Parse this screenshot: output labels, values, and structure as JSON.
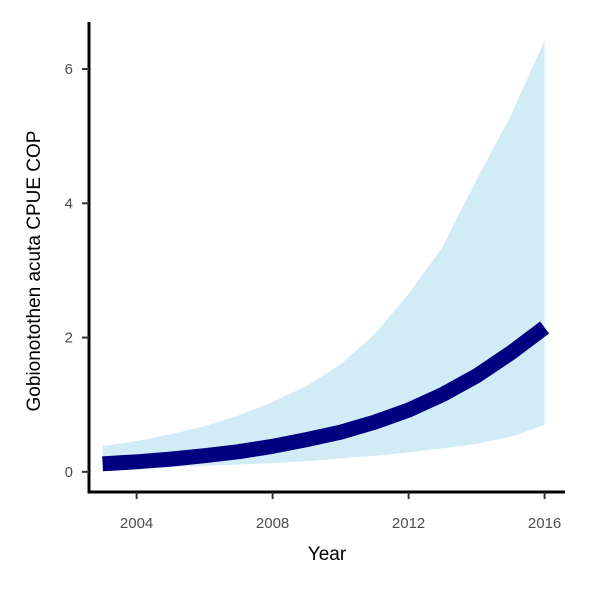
{
  "chart_data": {
    "type": "area",
    "xlabel": "Year",
    "ylabel": "Gobionotothen acuta  CPUE COP",
    "xlim": [
      2002.6,
      2016.6
    ],
    "ylim": [
      -0.3,
      6.7
    ],
    "x_ticks": [
      "2004",
      "2008",
      "2012",
      "2016"
    ],
    "y_ticks": [
      "0",
      "2",
      "4",
      "6"
    ],
    "grid": false,
    "legend": "none",
    "series": [
      {
        "type": "line",
        "color": "#000080",
        "x": [
          2003,
          2004,
          2005,
          2006,
          2007,
          2008,
          2009,
          2010,
          2011,
          2012,
          2013,
          2014,
          2015,
          2016
        ],
        "y": [
          0.12,
          0.15,
          0.19,
          0.24,
          0.3,
          0.38,
          0.48,
          0.59,
          0.74,
          0.92,
          1.15,
          1.43,
          1.77,
          2.15
        ]
      },
      {
        "type": "ribbon",
        "color": "#d1ebf7",
        "x": [
          2003,
          2004,
          2005,
          2006,
          2007,
          2008,
          2009,
          2010,
          2011,
          2012,
          2013,
          2014,
          2015,
          2016
        ],
        "lower": [
          0.03,
          0.05,
          0.07,
          0.09,
          0.11,
          0.13,
          0.16,
          0.2,
          0.24,
          0.29,
          0.35,
          0.42,
          0.52,
          0.7
        ],
        "upper": [
          0.38,
          0.46,
          0.56,
          0.68,
          0.84,
          1.04,
          1.28,
          1.6,
          2.05,
          2.65,
          3.35,
          4.35,
          5.3,
          6.42
        ]
      }
    ]
  }
}
